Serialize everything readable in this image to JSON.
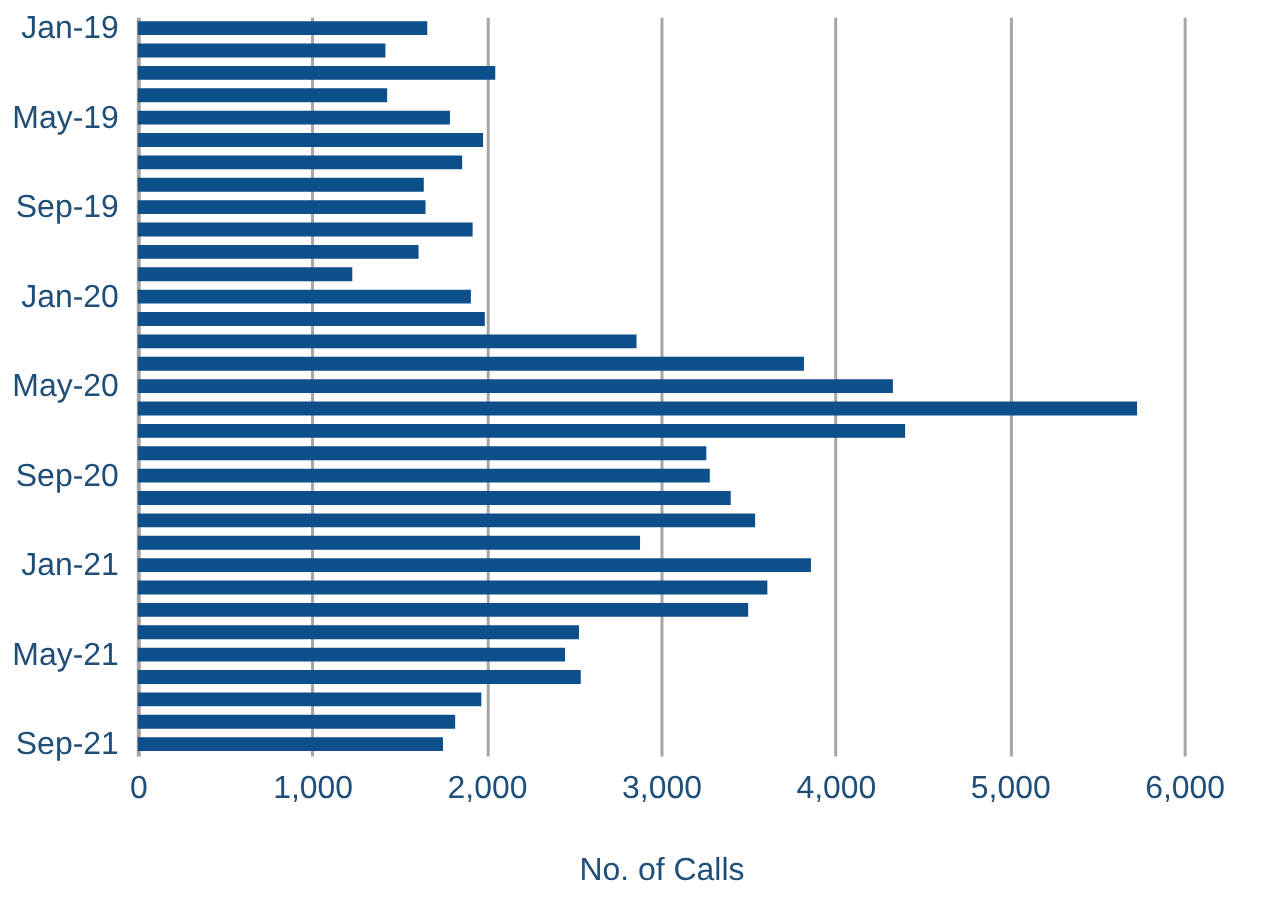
{
  "chart_data": {
    "type": "bar",
    "orientation": "horizontal",
    "xlabel": "No. of Calls",
    "categories": [
      "Jan-19",
      null,
      null,
      null,
      "May-19",
      null,
      null,
      null,
      "Sep-19",
      null,
      null,
      null,
      "Jan-20",
      null,
      null,
      null,
      "May-20",
      null,
      null,
      null,
      "Sep-20",
      null,
      null,
      null,
      "Jan-21",
      null,
      null,
      null,
      "May-21",
      null,
      null,
      null,
      "Sep-21"
    ],
    "values": [
      1660,
      1420,
      2050,
      1430,
      1790,
      1980,
      1860,
      1640,
      1650,
      1920,
      1610,
      1230,
      1910,
      1990,
      2860,
      3820,
      4330,
      5730,
      4400,
      3260,
      3280,
      3400,
      3540,
      2880,
      3860,
      3610,
      3500,
      2530,
      2450,
      2540,
      1970,
      1820,
      1750
    ],
    "color": "#0d4f8b",
    "xlim": [
      0,
      6000
    ],
    "xticks": [
      0,
      {
        "value": 1000,
        "label": "1,000"
      },
      {
        "value": 2000,
        "label": "2,000"
      },
      {
        "value": 3000,
        "label": "3,000"
      },
      {
        "value": 4000,
        "label": "4,000"
      },
      {
        "value": 5000,
        "label": "5,000"
      },
      {
        "value": 6000,
        "label": "6,000"
      }
    ],
    "grid": "x"
  }
}
